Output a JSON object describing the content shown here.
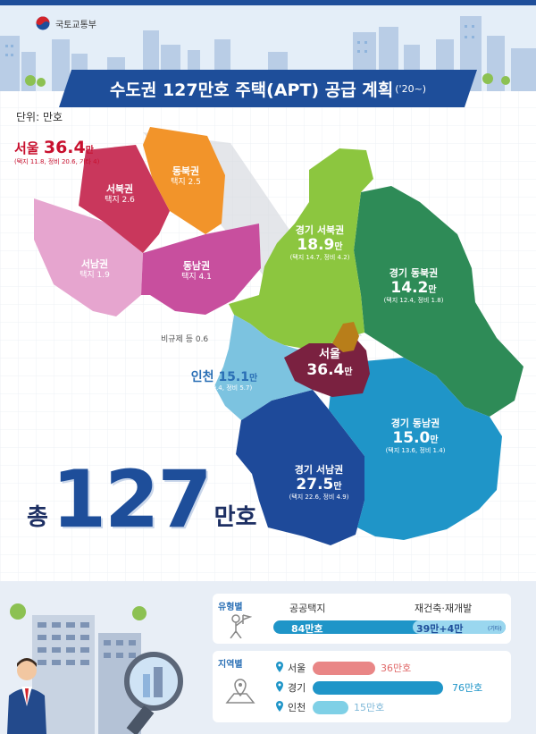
{
  "header": {
    "ministry": "국토교통부",
    "title": "수도권 127만호 주택(APT) 공급 계획",
    "period": "('20~)",
    "unit": "단위: 만호"
  },
  "seoul_zoom": {
    "name": "서울",
    "value": "36.4",
    "unit": "만",
    "detail": "(택지 11.8, 정비 20.6, 기타 4)",
    "areas": [
      {
        "name": "동북권",
        "detail": "택지 2.5"
      },
      {
        "name": "서북권",
        "detail": "택지 2.6"
      },
      {
        "name": "서남권",
        "detail": "택지 1.9"
      },
      {
        "name": "동남권",
        "detail": "택지 4.1"
      }
    ],
    "other": "비규제 등 0.6"
  },
  "regions": [
    {
      "name": "경기 서북권",
      "value": "18.9",
      "unit": "만",
      "detail": "(택지 14.7, 정비 4.2)"
    },
    {
      "name": "경기 동북권",
      "value": "14.2",
      "unit": "만",
      "detail": "(택지 12.4, 정비 1.8)"
    },
    {
      "name": "인천",
      "value": "15.1",
      "unit": "만",
      "detail": "(택지 9.4, 정비 5.7)"
    },
    {
      "name": "서울",
      "value": "36.4",
      "unit": "만"
    },
    {
      "name": "경기 동남권",
      "value": "15.0",
      "unit": "만",
      "detail": "(택지 13.6, 정비 1.4)"
    },
    {
      "name": "경기 서남권",
      "value": "27.5",
      "unit": "만",
      "detail": "(택지 22.6, 정비 4.9)"
    }
  ],
  "total": {
    "prefix": "총",
    "value": "127",
    "unit": "만호"
  },
  "by_type": {
    "title": "유형별",
    "items": [
      {
        "label": "공공택지",
        "value": "84만호",
        "color": "#1f95c8"
      },
      {
        "label": "재건축·재개발",
        "value": "39만+4만",
        "note": "(기타)",
        "color": "#9ad7ef"
      }
    ]
  },
  "by_region": {
    "title": "지역별",
    "items": [
      {
        "label": "서울",
        "value": "36만호",
        "color": "#e98686"
      },
      {
        "label": "경기",
        "value": "76만호",
        "color": "#1f95c8"
      },
      {
        "label": "인천",
        "value": "15만호",
        "color": "#7fd0e6"
      }
    ]
  },
  "colors": {
    "brand": "#1e4e9a",
    "seoul": "#7a2140",
    "gyeonggi_seobuk": "#8cc63f",
    "gyeonggi_dongbuk": "#2e8b57",
    "gyeonggi_dongnam": "#1f95c8",
    "gyeonggi_seonam": "#1e4a9a",
    "incheon": "#7cc3e0"
  }
}
